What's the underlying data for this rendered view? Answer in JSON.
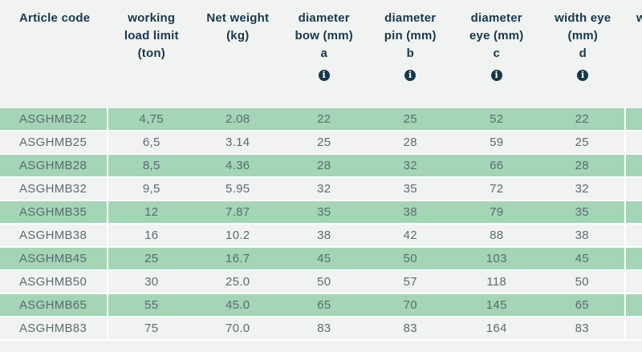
{
  "colors": {
    "row_green": "#a3d5b6",
    "row_light": "#f0f3f1",
    "page_background": "#f0f3f1",
    "header_text": "#17384c",
    "cell_text": "#5c6b72",
    "divider": "#ffffff",
    "info_icon_background": "#17384c",
    "info_icon_glyph": "#ffffff"
  },
  "table": {
    "columns": [
      {
        "id": "article-code",
        "header_lines": [
          "Article code"
        ],
        "letter": "",
        "info": false,
        "align": "left"
      },
      {
        "id": "working-load-limit",
        "header_lines": [
          "working",
          "load limit",
          "(ton)"
        ],
        "letter": "",
        "info": false,
        "align": "center"
      },
      {
        "id": "net-weight",
        "header_lines": [
          "Net weight",
          "(kg)"
        ],
        "letter": "",
        "info": false,
        "align": "center"
      },
      {
        "id": "diameter-bow",
        "header_lines": [
          "diameter",
          "bow (mm)"
        ],
        "letter": "a",
        "info": true,
        "align": "center"
      },
      {
        "id": "diameter-pin",
        "header_lines": [
          "diameter",
          "pin (mm)"
        ],
        "letter": "b",
        "info": true,
        "align": "center"
      },
      {
        "id": "diameter-eye",
        "header_lines": [
          "diameter",
          "eye (mm)"
        ],
        "letter": "c",
        "info": true,
        "align": "center"
      },
      {
        "id": "width-eye",
        "header_lines": [
          "width eye",
          "(mm)"
        ],
        "letter": "d",
        "info": true,
        "align": "center"
      }
    ],
    "info_icon_glyph": "i",
    "truncated_next_column_label": "w",
    "rows": [
      [
        "ASGHMB22",
        "4,75",
        "2.08",
        "22",
        "25",
        "52",
        "22"
      ],
      [
        "ASGHMB25",
        "6,5",
        "3.14",
        "25",
        "28",
        "59",
        "25"
      ],
      [
        "ASGHMB28",
        "8,5",
        "4.36",
        "28",
        "32",
        "66",
        "28"
      ],
      [
        "ASGHMB32",
        "9,5",
        "5.95",
        "32",
        "35",
        "72",
        "32"
      ],
      [
        "ASGHMB35",
        "12",
        "7.87",
        "35",
        "38",
        "79",
        "35"
      ],
      [
        "ASGHMB38",
        "16",
        "10.2",
        "38",
        "42",
        "88",
        "38"
      ],
      [
        "ASGHMB45",
        "25",
        "16.7",
        "45",
        "50",
        "103",
        "45"
      ],
      [
        "ASGHMB50",
        "30",
        "25.0",
        "50",
        "57",
        "118",
        "50"
      ],
      [
        "ASGHMB65",
        "55",
        "45.0",
        "65",
        "70",
        "145",
        "65"
      ],
      [
        "ASGHMB83",
        "75",
        "70.0",
        "83",
        "83",
        "164",
        "83"
      ]
    ],
    "row_striping": "odd rows green, even rows light"
  }
}
